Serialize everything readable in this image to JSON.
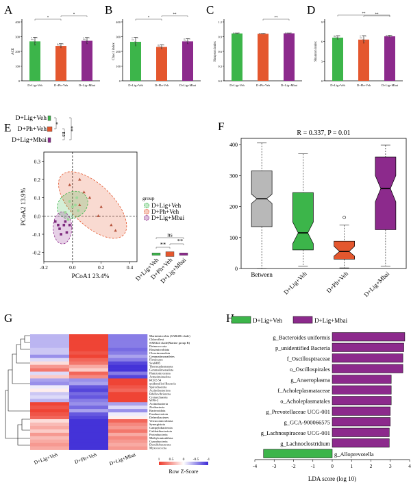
{
  "colors": {
    "green": "#3cb54a",
    "orange": "#e4572e",
    "purple": "#8c2a8c",
    "gray": "#b8b8b8",
    "heat_high": "#ee3b2c",
    "heat_low": "#3b2ad6",
    "lda_green": "#3cb54a",
    "lda_purple": "#8c2a8c"
  },
  "panels": {
    "A": {
      "letter": "A"
    },
    "B": {
      "letter": "B"
    },
    "C": {
      "letter": "C"
    },
    "D": {
      "letter": "D"
    },
    "E": {
      "letter": "E"
    },
    "F": {
      "letter": "F"
    },
    "G": {
      "letter": "G"
    },
    "H": {
      "letter": "H"
    }
  },
  "chart_data": [
    {
      "id": "A",
      "type": "bar",
      "ylabel": "ACE",
      "categories": [
        "D+Lig+Veh",
        "D+Ph+Veh",
        "D+Lig+Mbai"
      ],
      "values": [
        268,
        237,
        272
      ],
      "errors": [
        28,
        15,
        22
      ],
      "ylim": [
        0,
        400
      ],
      "yticks": [
        "0",
        "100",
        "200",
        "300",
        "400"
      ],
      "sig": [
        {
          "a": 0,
          "b": 1,
          "label": "*"
        },
        {
          "a": 1,
          "b": 2,
          "label": "*"
        }
      ]
    },
    {
      "id": "B",
      "type": "bar",
      "ylabel": "Chao1 index",
      "categories": [
        "D+Lig+Veh",
        "D+Ph+Veh",
        "D+Lig+Mbai"
      ],
      "values": [
        265,
        230,
        268
      ],
      "errors": [
        30,
        15,
        18
      ],
      "ylim": [
        0,
        400
      ],
      "yticks": [
        "0",
        "100",
        "200",
        "300",
        "400"
      ],
      "sig": [
        {
          "a": 0,
          "b": 1,
          "label": "*"
        },
        {
          "a": 1,
          "b": 2,
          "label": "**"
        }
      ]
    },
    {
      "id": "C",
      "type": "bar",
      "ylabel": "Simpson index",
      "categories": [
        "D+Lig+Veh",
        "D+Ph+Veh",
        "D+Lig+Mbai"
      ],
      "values": [
        0.965,
        0.958,
        0.968
      ],
      "errors": [
        0.01,
        0.008,
        0.007
      ],
      "ylim": [
        0,
        1.2
      ],
      "yticks": [
        "0.0",
        "0.3",
        "0.6",
        "0.9",
        "1.2"
      ],
      "sig": [
        {
          "a": 1,
          "b": 2,
          "label": "**"
        }
      ]
    },
    {
      "id": "D",
      "type": "bar",
      "ylabel": "Shannon index",
      "categories": [
        "D+Lig+Veh",
        "D+Ph+Veh",
        "D+Lig+Mbai"
      ],
      "values": [
        6.6,
        6.3,
        6.8
      ],
      "errors": [
        0.3,
        0.6,
        0.15
      ],
      "ylim": [
        0,
        9
      ],
      "yticks": [
        "0",
        "3",
        "6",
        "9"
      ],
      "sig": [
        {
          "a": 0,
          "b": 2,
          "label": "**"
        },
        {
          "a": 1,
          "b": 2,
          "label": "**"
        }
      ]
    },
    {
      "id": "E",
      "type": "scatter",
      "xlabel": "PCoA1 23.4%",
      "ylabel": "PCoA2 13.9%",
      "xlim": [
        -0.2,
        0.45
      ],
      "ylim": [
        -0.25,
        0.35
      ],
      "xticks": [
        -0.2,
        0.0,
        0.2,
        0.4
      ],
      "xtick_labels": [
        "-0.2",
        "0.0",
        "0.2",
        "0.4"
      ],
      "yticks": [
        -0.2,
        -0.1,
        0.0,
        0.1,
        0.2,
        0.3
      ],
      "ytick_labels": [
        "-0.2",
        "-0.1",
        "0.0",
        "0.1",
        "0.2",
        "0.3"
      ],
      "legend_title": "group",
      "groups": [
        "D+Lig+Veh",
        "D+Ph+Veh",
        "D+Lig+Mbai"
      ],
      "points": {
        "D+Lig+Veh": [
          [
            -0.05,
            0.02
          ],
          [
            0.0,
            0.05
          ],
          [
            0.03,
            0.1
          ],
          [
            -0.02,
            0.08
          ],
          [
            0.04,
            0.03
          ],
          [
            -0.03,
            -0.02
          ],
          [
            0.02,
            0.06
          ]
        ],
        "D+Ph+Veh": [
          [
            -0.02,
            0.17
          ],
          [
            0.05,
            0.2
          ],
          [
            0.08,
            0.13
          ],
          [
            0.12,
            0.1
          ],
          [
            0.2,
            0.05
          ],
          [
            0.18,
            0.0
          ],
          [
            0.27,
            -0.05
          ],
          [
            0.3,
            -0.08
          ],
          [
            0.05,
            0.06
          ]
        ],
        "D+Lig+Mbai": [
          [
            -0.12,
            -0.03
          ],
          [
            -0.09,
            -0.07
          ],
          [
            -0.06,
            -0.05
          ],
          [
            -0.04,
            -0.09
          ],
          [
            -0.08,
            -0.1
          ],
          [
            -0.1,
            -0.05
          ],
          [
            -0.05,
            -0.03
          ],
          [
            -0.02,
            -0.05
          ]
        ]
      },
      "top_box_sig": [
        "*",
        "ns",
        "**"
      ],
      "right_box_sig": [
        "**",
        "ns",
        "**"
      ],
      "right_box_categories": [
        "D+Lig+Veh",
        "D+Ph+Veh",
        "D+Lig+Mbai"
      ]
    },
    {
      "id": "F",
      "type": "box",
      "title": "R = 0.337, P = 0.01",
      "categories": [
        "Between",
        "D+Lig+Veh",
        "D+Ph+Veh",
        "D+Lig+Mbai"
      ],
      "ylim": [
        0,
        420
      ],
      "yticks": [
        "0",
        "100",
        "200",
        "300",
        "400"
      ],
      "boxes": [
        {
          "min": 0,
          "q1": 135,
          "median": 225,
          "q3": 315,
          "max": 405,
          "notch": [
            210,
            240
          ],
          "outliers": []
        },
        {
          "min": 8,
          "q1": 60,
          "median": 115,
          "q3": 245,
          "max": 370,
          "notch": [
            80,
            150
          ],
          "outliers": []
        },
        {
          "min": 2,
          "q1": 30,
          "median": 55,
          "q3": 88,
          "max": 140,
          "notch": [
            40,
            72
          ],
          "outliers": [
            165
          ]
        },
        {
          "min": 8,
          "q1": 125,
          "median": 258,
          "q3": 360,
          "max": 398,
          "notch": [
            215,
            300
          ],
          "outliers": []
        }
      ]
    },
    {
      "id": "G",
      "type": "heatmap",
      "columns": [
        "D+Lig+Veh",
        "D+Ph+Veh",
        "D+Lig+Mbai"
      ],
      "rows": [
        "Marinimicrobia (SAR406 clade)",
        "Chloroflexi",
        "SAR324 clade(Marine group B)",
        "Deinococcota",
        "Elusimicrobiota",
        "Cloacimonadota",
        "Gemmatimonadetes",
        "Firmicutes",
        "Sva0485",
        "Thermoplasmatota",
        "Gemmatimonadota",
        "Planctomycetota",
        "Armatimonadota",
        "RCP2-54",
        "unidentified Bacteria",
        "Spirochaetota",
        "Actinobacteriota",
        "Bdellovibrionota",
        "Crenarchaeota",
        "WPS-2",
        "Actinobacteria",
        "Zixibacteria",
        "Bacteroidota",
        "Fusobacteriota",
        "Deferribacteres",
        "Verrucomicrobiota",
        "Synergistota",
        "Campylobacterota",
        "Caldatribacteriota",
        "Proteobacteria",
        "Methylomirabilota",
        "Cyanobacteria",
        "Desulfobacterota",
        "Myxococcota"
      ],
      "values": [
        [
          -0.4,
          1.1,
          -0.7
        ],
        [
          -0.4,
          1.1,
          -0.7
        ],
        [
          -0.4,
          1.1,
          -0.7
        ],
        [
          -0.4,
          1.1,
          -0.7
        ],
        [
          -0.3,
          1.1,
          -0.8
        ],
        [
          -0.3,
          1.0,
          -0.7
        ],
        [
          -0.6,
          1.1,
          -0.5
        ],
        [
          -0.2,
          0.9,
          -0.7
        ],
        [
          0.2,
          0.8,
          -1.0
        ],
        [
          0.6,
          0.5,
          -1.1
        ],
        [
          0.8,
          0.3,
          -1.1
        ],
        [
          -0.2,
          0.9,
          -0.7
        ],
        [
          0.3,
          0.7,
          -1.0
        ],
        [
          -0.5,
          -0.6,
          1.1
        ],
        [
          -0.6,
          -0.5,
          1.1
        ],
        [
          -0.1,
          -0.9,
          1.0
        ],
        [
          0.1,
          -1.0,
          0.9
        ],
        [
          -0.3,
          -0.8,
          1.1
        ],
        [
          -0.2,
          -0.9,
          1.1
        ],
        [
          -0.4,
          -0.7,
          1.1
        ],
        [
          1.1,
          -0.6,
          -0.5
        ],
        [
          1.0,
          -0.8,
          -0.2
        ],
        [
          1.1,
          -0.5,
          -0.6
        ],
        [
          1.0,
          -0.9,
          -0.1
        ],
        [
          0.9,
          -1.0,
          0.1
        ],
        [
          0.2,
          -1.1,
          0.9
        ],
        [
          0.4,
          -1.1,
          0.7
        ],
        [
          0.5,
          -1.1,
          0.6
        ],
        [
          0.3,
          -1.1,
          0.8
        ],
        [
          0.6,
          -1.1,
          0.5
        ],
        [
          0.4,
          -1.1,
          0.7
        ],
        [
          0.5,
          -1.1,
          0.6
        ],
        [
          0.6,
          -1.1,
          0.5
        ],
        [
          0.5,
          -1.1,
          0.6
        ]
      ],
      "legend_title": "Row Z-Score",
      "legend_ticks": [
        "1",
        "0.5",
        "0",
        "-0.5",
        "-1"
      ]
    },
    {
      "id": "H",
      "type": "bar",
      "orientation": "horizontal",
      "xlabel": "LDA score (log 10)",
      "xlim": [
        -4,
        4
      ],
      "xticks": [
        "-4",
        "-3",
        "-2",
        "-1",
        "0",
        "1",
        "2",
        "3",
        "4"
      ],
      "legend": [
        "D+Lig+Veh",
        "D+Lig+Mbai"
      ],
      "categories": [
        "g_Bacteroides uniformis",
        "p_unidentified Bacteria",
        "f_Oscillospiraceae",
        "o_Oscillospirales",
        "g_Anaeroplasma",
        "f_Acholeplasmataceae",
        "o_Acholeplasmatales",
        "g_Prevotellaceae UCG-001",
        "g_GCA-900066575",
        "g_Lachnospiraceae UCG-001",
        "g_Lachnoclostridium",
        "g_Alloprevotella"
      ],
      "values": [
        3.75,
        3.7,
        3.65,
        3.65,
        3.05,
        3.05,
        3.05,
        3.0,
        3.0,
        2.95,
        2.95,
        -3.55
      ],
      "groups": [
        "D+Lig+Mbai",
        "D+Lig+Mbai",
        "D+Lig+Mbai",
        "D+Lig+Mbai",
        "D+Lig+Mbai",
        "D+Lig+Mbai",
        "D+Lig+Mbai",
        "D+Lig+Mbai",
        "D+Lig+Mbai",
        "D+Lig+Mbai",
        "D+Lig+Mbai",
        "D+Lig+Veh"
      ]
    }
  ]
}
